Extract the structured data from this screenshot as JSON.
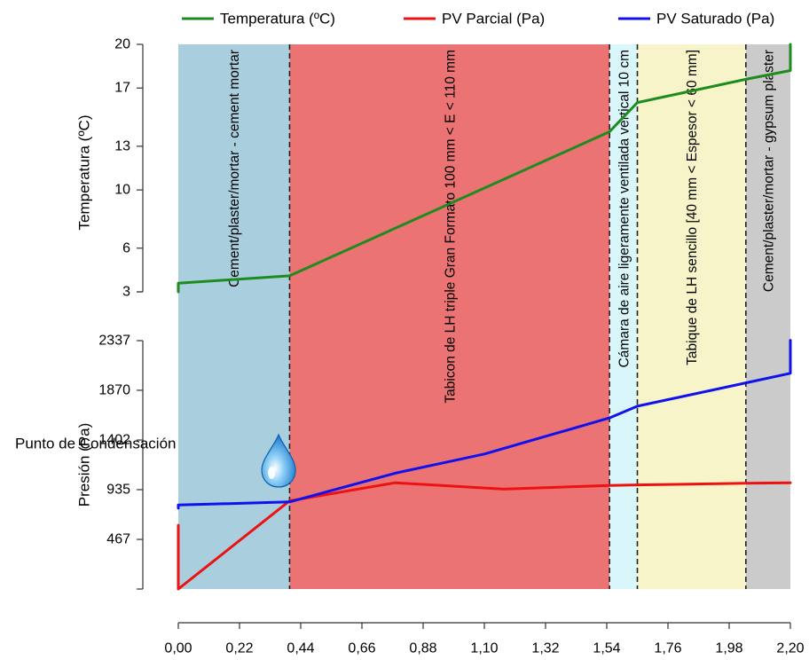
{
  "chart_data": [
    {
      "type": "line",
      "ylabel": "Temperatura (ºC)",
      "yticks": [
        "20",
        "17",
        "13",
        "10",
        "6",
        "3"
      ],
      "ylim": [
        3,
        20
      ],
      "series": [
        {
          "name": "Temperatura (ºC)",
          "color": "#1e8b1e",
          "x": [
            0.0,
            0.0,
            0.4,
            1.55,
            1.65,
            2.04,
            2.2,
            2.2
          ],
          "y": [
            3.0,
            3.6,
            4.1,
            14.0,
            16.0,
            17.6,
            18.2,
            20.0
          ]
        }
      ]
    },
    {
      "type": "line",
      "ylabel": "Presión (Pa)",
      "yticks": [
        "2337",
        "1870",
        "1402",
        "935",
        "467"
      ],
      "ylim": [
        0,
        2337
      ],
      "series": [
        {
          "name": "PV Parcial (Pa)",
          "color": "#ee1111",
          "x": [
            0.0,
            0.0,
            0.4,
            0.78,
            1.17,
            1.55,
            1.65,
            2.04,
            2.2
          ],
          "y": [
            600,
            0,
            830,
            1000,
            940,
            975,
            980,
            995,
            1000
          ]
        },
        {
          "name": "PV Saturado (Pa)",
          "color": "#1111ee",
          "x": [
            0.0,
            0.0,
            0.4,
            0.78,
            1.1,
            1.55,
            1.65,
            2.04,
            2.2,
            2.2
          ],
          "y": [
            760,
            790,
            820,
            1090,
            1270,
            1610,
            1720,
            1940,
            2030,
            2340
          ]
        }
      ]
    }
  ],
  "x_axis": {
    "ticks": [
      0.0,
      0.22,
      0.44,
      0.66,
      0.88,
      1.1,
      1.32,
      1.54,
      1.76,
      1.98,
      2.2
    ],
    "tick_labels": [
      "0,00",
      "0,22",
      "0,44",
      "0,66",
      "0,88",
      "1,10",
      "1,32",
      "1,54",
      "1,76",
      "1,98",
      "2,20"
    ],
    "range": [
      0,
      2.2
    ]
  },
  "layers": [
    {
      "label": "Cement/plaster/mortar - cement mortar",
      "x0": 0.0,
      "x1": 0.4,
      "color": "#a9cfde"
    },
    {
      "label": "Tabicon de LH triple Gran Formato 100 mm < E < 110 mm",
      "x0": 0.4,
      "x1": 1.55,
      "color": "#ec7373"
    },
    {
      "label": "Cámara de aire ligeramente ventilada vertical 10 cm",
      "x0": 1.55,
      "x1": 1.65,
      "color": "#d9f7fb"
    },
    {
      "label": "Tabique de LH sencillo [40 mm < Espesor < 60 mm]",
      "x0": 1.65,
      "x1": 2.04,
      "color": "#f8f4c9"
    },
    {
      "label": "Cement/plaster/mortar - gypsum plaster",
      "x0": 2.04,
      "x1": 2.2,
      "color": "#cbcbcb"
    }
  ],
  "condensation": {
    "label": "Punto de Condensación",
    "icon": "water-drop-icon",
    "x": 0.3
  },
  "legend": {
    "placement": "top",
    "entries": [
      {
        "label": "Temperatura (ºC)",
        "color": "#1e8b1e"
      },
      {
        "label": "PV Parcial (Pa)",
        "color": "#ee1111"
      },
      {
        "label": "PV Saturado (Pa)",
        "color": "#1111ee"
      }
    ]
  }
}
